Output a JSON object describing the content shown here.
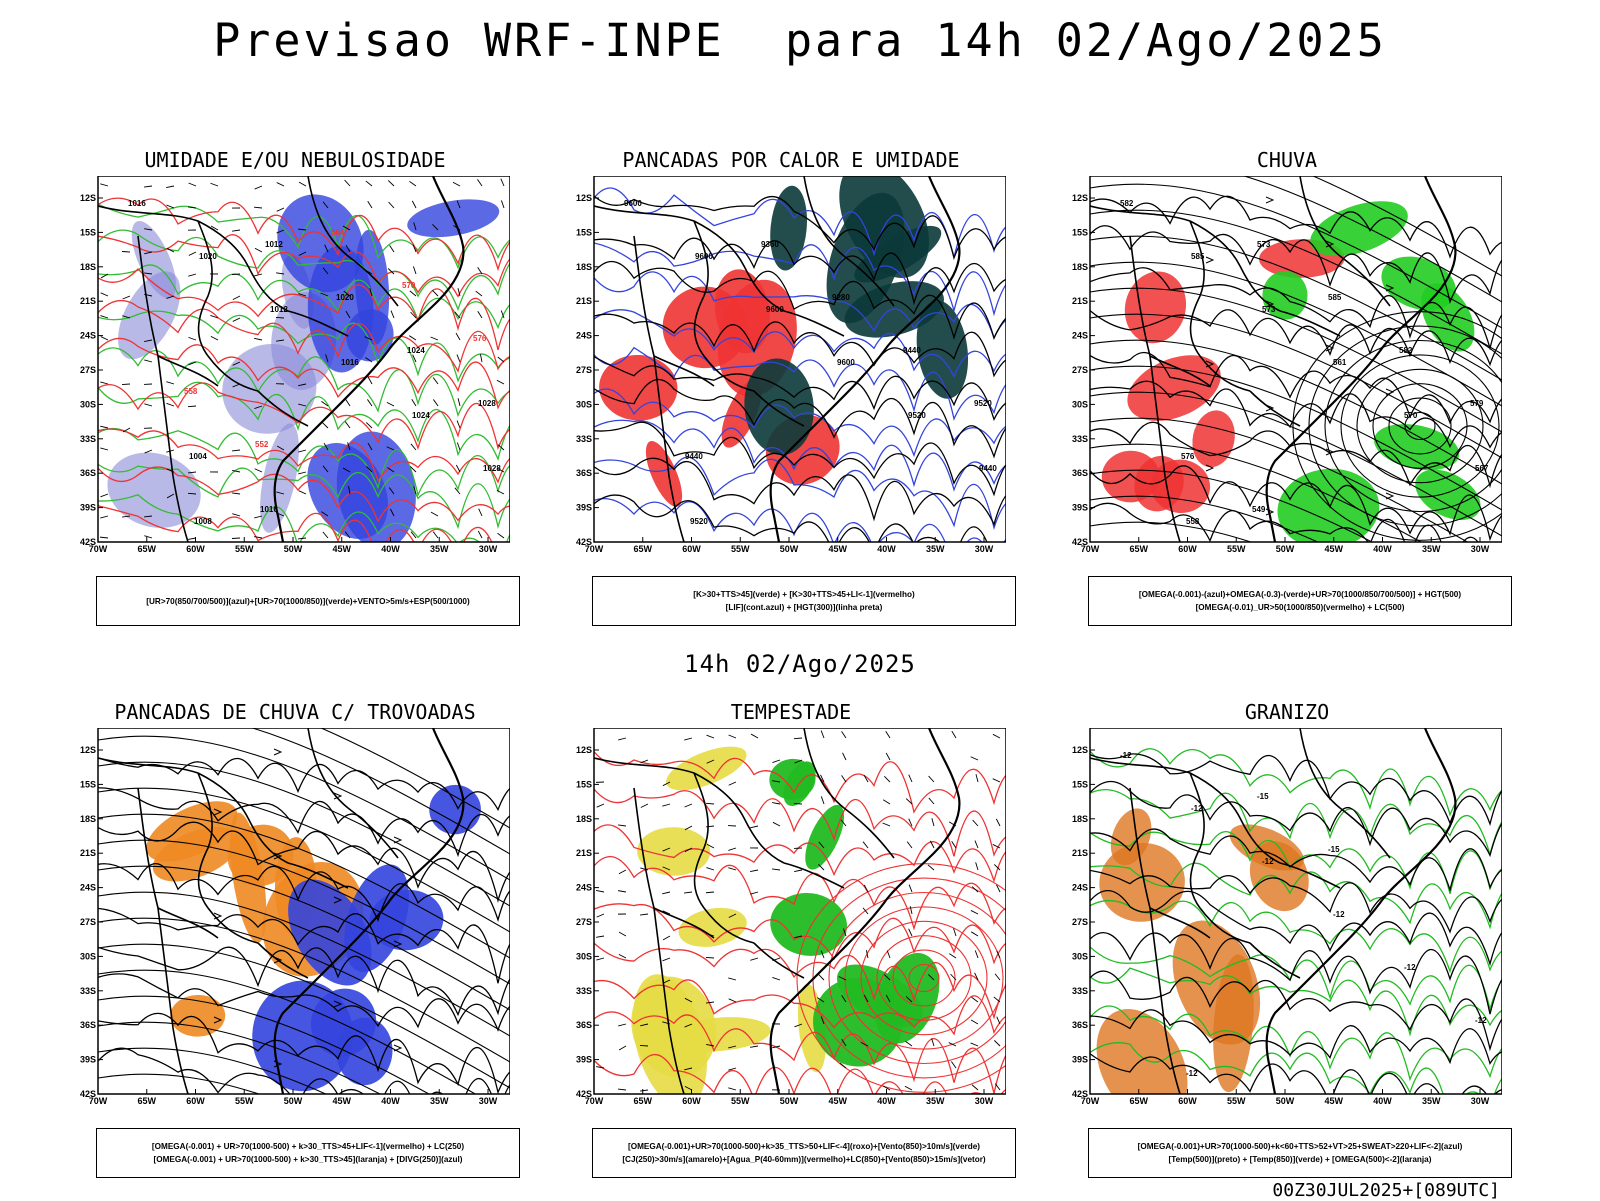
{
  "title": "Previsao WRF-INPE  para 14h 02/Ago/2025",
  "mid_title": "14h 02/Ago/2025",
  "footer": "00Z30JUL2025+[089UTC]",
  "lat_labels": [
    "12S",
    "15S",
    "18S",
    "21S",
    "24S",
    "27S",
    "30S",
    "33S",
    "36S",
    "39S",
    "42S"
  ],
  "lon_labels": [
    "70W",
    "65W",
    "60W",
    "55W",
    "50W",
    "45W",
    "40W",
    "35W",
    "30W"
  ],
  "panels": [
    {
      "title": "UMIDADE E/OU NEBULOSIDADE",
      "legend": [
        "[UR>70(850/700/500)](azul)+[UR>70(1000/850)](verde)+VENTO>5m/s+ESP(500/1000)"
      ],
      "labels": [
        "1016",
        "1020",
        "1012",
        "1016",
        "1024",
        "1028",
        "1008",
        "1012",
        "1020",
        "1024",
        "1028",
        "1004",
        "1016",
        "564",
        "570",
        "576",
        "558",
        "552"
      ]
    },
    {
      "title": "PANCADAS POR CALOR E UMIDADE",
      "legend": [
        "[K>30+TTS>45](verde) + [K>30+TTS>45+LI<-1](vermelho)",
        "[LIF](cont.azul) + [HGT(300)](linha preta)"
      ],
      "labels": [
        "9600",
        "9600",
        "9600",
        "9600",
        "9520",
        "9440",
        "9520",
        "9360",
        "9280",
        "9440",
        "9520",
        "9440"
      ]
    },
    {
      "title": "CHUVA",
      "legend": [
        "[OMEGA(-0.001)-(azul)+OMEGA(-0.3)-(verde)+UR>70(1000/850/700/500)] + HGT(500)",
        "[OMEGA(-0.01)_UR>50(1000/850)(vermelho) + LC(500)"
      ],
      "labels": [
        "582",
        "585",
        "573",
        "561",
        "570",
        "567",
        "558",
        "573",
        "585",
        "582",
        "579",
        "576",
        "549"
      ]
    },
    {
      "title": "PANCADAS DE CHUVA C/ TROVOADAS",
      "legend": [
        "[OMEGA(-0.001) + UR>70(1000-500) + k>30_TTS>45+LIF<-1](vermelho) + LC(250)",
        "[OMEGA(-0.001) + UR>70(1000-500) + k>30_TTS>45](laranja) + [DIVG(250)](azul)"
      ],
      "labels": []
    },
    {
      "title": "TEMPESTADE",
      "legend": [
        "[OMEGA(-0.001)+UR>70(1000-500)+k>35_TTS>50+LIF<-4](roxo)+[Vento(850)>10m/s](verde)",
        "[CJ(250)>30m/s](amarelo)+[Agua_P(40-60mm)](vermelho)+LC(850)+[Vento(850)>15m/s](vetor)"
      ],
      "labels": []
    },
    {
      "title": "GRANIZO",
      "legend": [
        "[OMEGA(-0.001)+UR>70(1000-500)+k<60+TTS>52+VT>25+SWEAT>220+LIF<-2](azul)",
        "[Temp(500)](preto) + [Temp(850)](verde) + [OMEGA(500)<-2](laranja)"
      ],
      "labels": [
        "-12",
        "-12",
        "-12",
        "-12",
        "-12",
        "-12",
        "-12",
        "-15",
        "-15"
      ]
    }
  ]
}
